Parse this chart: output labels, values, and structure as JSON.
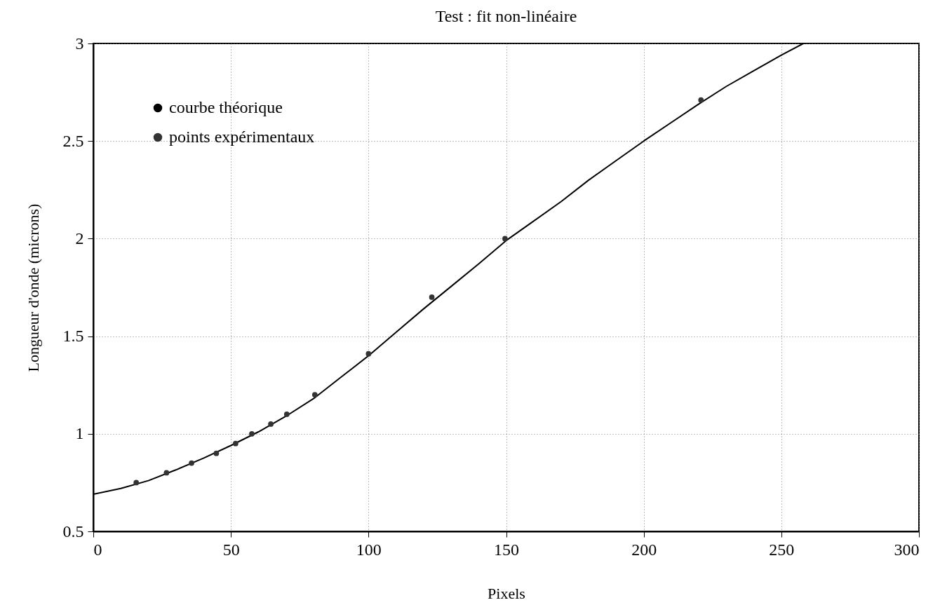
{
  "chart_data": {
    "type": "scatter",
    "title": "Test : fit non-linéaire",
    "xlabel": "Pixels",
    "ylabel": "Longueur d'onde  (microns)",
    "xlim": [
      0,
      300
    ],
    "xticks": [
      0,
      50,
      100,
      150,
      200,
      250,
      300
    ],
    "ylim": [
      0.5,
      3
    ],
    "yticks": [
      0.5,
      1,
      1.5,
      2,
      2.5,
      3
    ],
    "grid": true,
    "legend": "top left",
    "series": [
      {
        "name": "courbe théorique",
        "type": "line",
        "line_style": "solid",
        "color": "#000000",
        "x": [
          0,
          10,
          20,
          30,
          40,
          50,
          60,
          70,
          80,
          90,
          100,
          110,
          120,
          130,
          140,
          150,
          160,
          170,
          180,
          190,
          200,
          210,
          220,
          230,
          240,
          250,
          258
        ],
        "values": [
          0.69,
          0.72,
          0.76,
          0.815,
          0.875,
          0.94,
          1.01,
          1.09,
          1.18,
          1.29,
          1.4,
          1.52,
          1.64,
          1.755,
          1.87,
          1.99,
          2.09,
          2.19,
          2.3,
          2.4,
          2.5,
          2.595,
          2.69,
          2.78,
          2.86,
          2.94,
          3.0
        ]
      },
      {
        "name": "points expérimentaux",
        "marker": "circle",
        "color": "#333333",
        "x": [
          15.6,
          26.6,
          35.7,
          44.7,
          51.7,
          57.6,
          64.5,
          70.3,
          80.5,
          100,
          123,
          149.6,
          220.8
        ],
        "values": [
          0.75,
          0.8,
          0.85,
          0.9,
          0.95,
          1.0,
          1.05,
          1.1,
          1.2,
          1.41,
          1.7,
          2.0,
          2.71
        ]
      }
    ]
  }
}
